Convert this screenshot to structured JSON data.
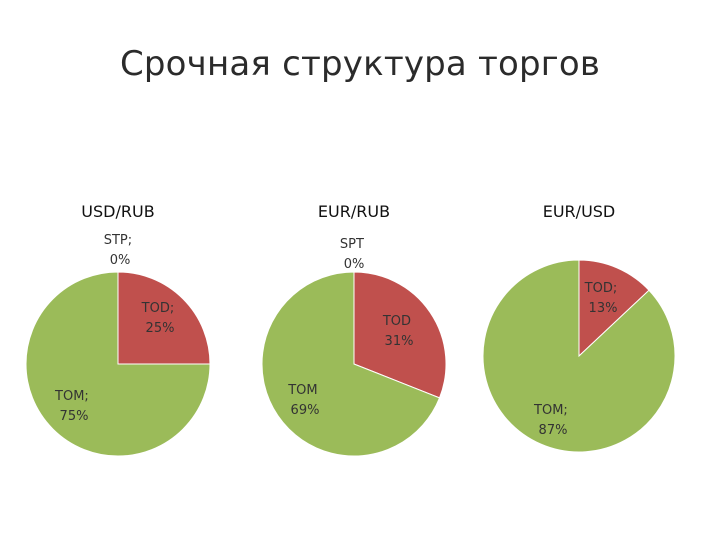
{
  "title": "Срочная структура торгов",
  "colors": {
    "TOD": "#c0504d",
    "TOM": "#9bbb59",
    "STP": "#4f81bd",
    "SPT": "#4f81bd",
    "outline": "#ffffff"
  },
  "chart_data": [
    {
      "type": "pie",
      "title": "USD/RUB",
      "slices": [
        {
          "name": "TOD",
          "value": 25,
          "color": "#c0504d",
          "label_lines": [
            "TOD;",
            "25%"
          ]
        },
        {
          "name": "TOM",
          "value": 75,
          "color": "#9bbb59",
          "label_lines": [
            "TOM;",
            "75%"
          ]
        },
        {
          "name": "STP",
          "value": 0,
          "color": "#4f81bd",
          "label_lines": [
            "STP;",
            "0%"
          ]
        }
      ]
    },
    {
      "type": "pie",
      "title": "EUR/RUB",
      "slices": [
        {
          "name": "TOD",
          "value": 31,
          "color": "#c0504d",
          "label_lines": [
            "TOD",
            "31%"
          ]
        },
        {
          "name": "TOM",
          "value": 69,
          "color": "#9bbb59",
          "label_lines": [
            "TOM",
            "69%"
          ]
        },
        {
          "name": "SPT",
          "value": 0,
          "color": "#4f81bd",
          "label_lines": [
            "SPT",
            "0%"
          ]
        }
      ]
    },
    {
      "type": "pie",
      "title": "EUR/USD",
      "slices": [
        {
          "name": "TOD",
          "value": 13,
          "color": "#c0504d",
          "label_lines": [
            "TOD;",
            "13%"
          ]
        },
        {
          "name": "TOM",
          "value": 87,
          "color": "#9bbb59",
          "label_lines": [
            "TOM;",
            "87%"
          ]
        }
      ]
    }
  ]
}
